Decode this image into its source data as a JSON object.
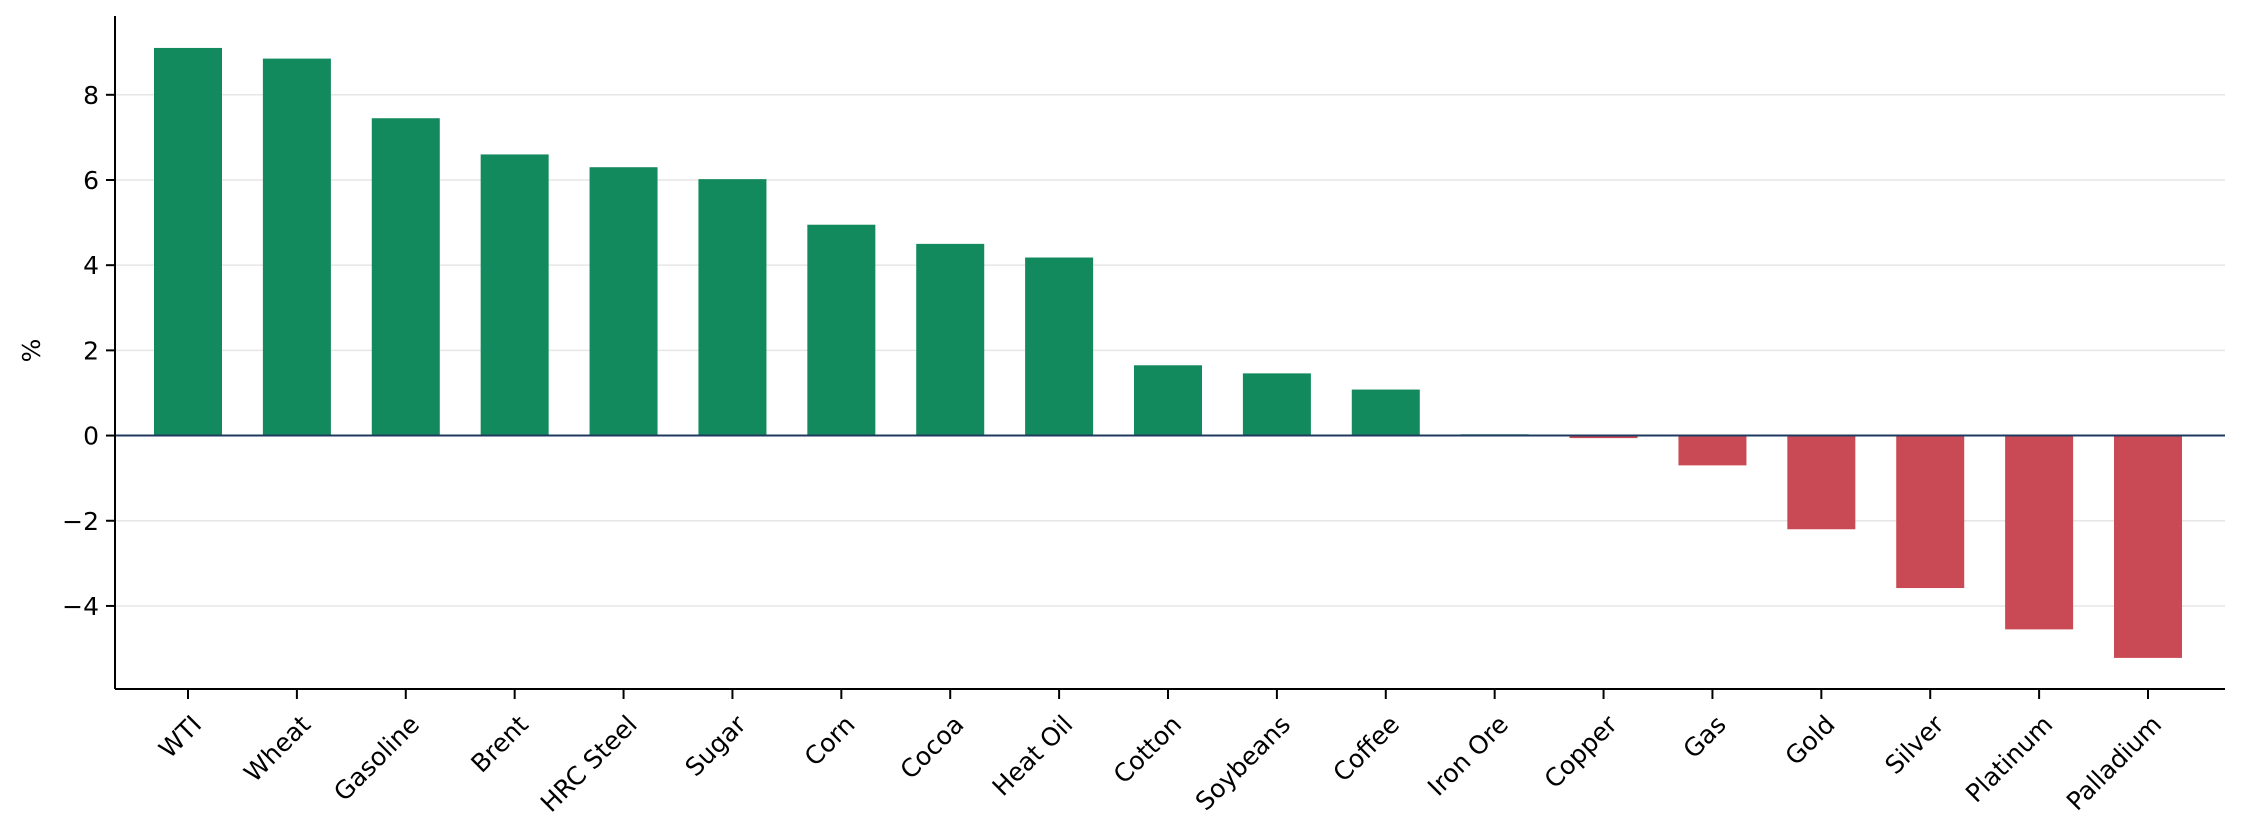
{
  "chart_data": {
    "type": "bar",
    "title": "",
    "xlabel": "",
    "ylabel": "%",
    "categories": [
      "WTI",
      "Wheat",
      "Gasoline",
      "Brent",
      "HRC Steel",
      "Sugar",
      "Corn",
      "Cocoa",
      "Heat Oil",
      "Cotton",
      "Soybeans",
      "Coffee",
      "Iron Ore",
      "Copper",
      "Gas",
      "Gold",
      "Silver",
      "Platinum",
      "Palladium"
    ],
    "values": [
      9.1,
      8.85,
      7.45,
      6.6,
      6.3,
      6.02,
      4.95,
      4.5,
      4.18,
      1.65,
      1.46,
      1.08,
      0.03,
      -0.06,
      -0.7,
      -2.2,
      -3.58,
      -4.55,
      -5.22
    ],
    "ylim": [
      -5.95,
      9.85
    ],
    "yticks": [
      -4,
      -2,
      0,
      2,
      4,
      6,
      8
    ],
    "grid": "horizontal",
    "colors": {
      "positive": "#138a5e",
      "negative": "#c94a55",
      "zero_line": "#1f3a5f"
    }
  }
}
